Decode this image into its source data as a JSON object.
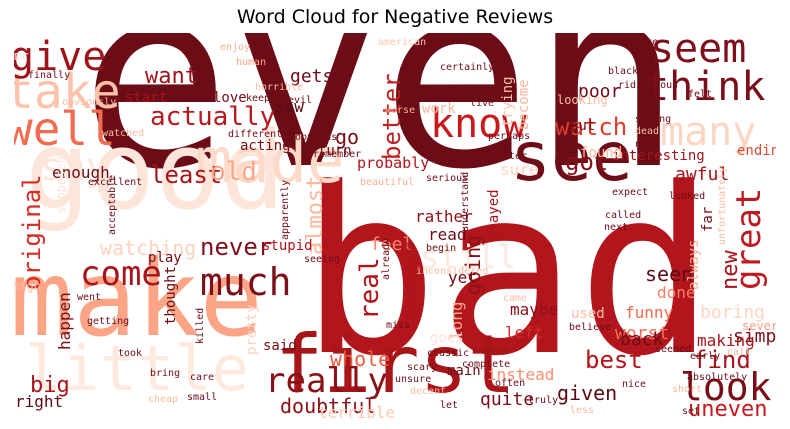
{
  "chart_data": {
    "type": "wordcloud",
    "title": "Word Cloud for Negative Reviews",
    "colormap": "Reds",
    "words": [
      {
        "text": "even",
        "weight": 1.0,
        "color": "#6b0c16"
      },
      {
        "text": "bad",
        "weight": 0.98,
        "color": "#b3151c"
      },
      {
        "text": "good",
        "weight": 0.62,
        "color": "#fde5d9"
      },
      {
        "text": "make",
        "weight": 0.62,
        "color": "#fca486"
      },
      {
        "text": "first",
        "weight": 0.45,
        "color": "#a81519"
      },
      {
        "text": "made",
        "weight": 0.38,
        "color": "#fdd9c8"
      },
      {
        "text": "little",
        "weight": 0.37,
        "color": "#fee9df"
      },
      {
        "text": "see",
        "weight": 0.33,
        "color": "#6e0c17"
      },
      {
        "text": "take",
        "weight": 0.26,
        "color": "#fcc2aa"
      },
      {
        "text": "well",
        "weight": 0.25,
        "color": "#f26b4f"
      },
      {
        "text": "seem",
        "weight": 0.22,
        "color": "#7f0f1a"
      },
      {
        "text": "think",
        "weight": 0.22,
        "color": "#7b0e18"
      },
      {
        "text": "give",
        "weight": 0.2,
        "color": "#9d1318"
      },
      {
        "text": "know",
        "weight": 0.2,
        "color": "#cb181d"
      },
      {
        "text": "many",
        "weight": 0.2,
        "color": "#fcd5c4"
      },
      {
        "text": "say",
        "weight": 0.19,
        "color": "#fee5da"
      },
      {
        "text": "much",
        "weight": 0.19,
        "color": "#7d0f18"
      },
      {
        "text": "look",
        "weight": 0.19,
        "color": "#7a0e18"
      },
      {
        "text": "really",
        "weight": 0.18,
        "color": "#8c1116"
      },
      {
        "text": "great",
        "weight": 0.17,
        "color": "#be1a21"
      },
      {
        "text": "come",
        "weight": 0.17,
        "color": "#a8141b"
      },
      {
        "text": "still",
        "weight": 0.16,
        "color": "#fee9df"
      },
      {
        "text": "actually",
        "weight": 0.14,
        "color": "#b61a1e"
      },
      {
        "text": "watch",
        "weight": 0.14,
        "color": "#e03a2b"
      },
      {
        "text": "got",
        "weight": 0.14,
        "color": "#871018"
      },
      {
        "text": "better",
        "weight": 0.13,
        "color": "#c0201f"
      },
      {
        "text": "original",
        "weight": 0.13,
        "color": "#d52b23"
      },
      {
        "text": "least",
        "weight": 0.13,
        "color": "#a8141b"
      },
      {
        "text": "old",
        "weight": 0.13,
        "color": "#fca588"
      },
      {
        "text": "never",
        "weight": 0.13,
        "color": "#7f0f1a"
      },
      {
        "text": "want",
        "weight": 0.12,
        "color": "#9d1318"
      },
      {
        "text": "watching",
        "weight": 0.12,
        "color": "#fdd3c0"
      },
      {
        "text": "real",
        "weight": 0.12,
        "color": "#b21218"
      },
      {
        "text": "new",
        "weight": 0.12,
        "color": "#a8141b"
      },
      {
        "text": "uneven",
        "weight": 0.12,
        "color": "#c8171c"
      },
      {
        "text": "find",
        "weight": 0.12,
        "color": "#a8141b"
      },
      {
        "text": "almost",
        "weight": 0.11,
        "color": "#fcb79c"
      },
      {
        "text": "going",
        "weight": 0.11,
        "color": "#8c1116"
      },
      {
        "text": "seen",
        "weight": 0.1,
        "color": "#5c0a14"
      },
      {
        "text": "big",
        "weight": 0.1,
        "color": "#a8141b"
      },
      {
        "text": "best",
        "weight": 0.1,
        "color": "#b31319"
      },
      {
        "text": "doubtful",
        "weight": 0.1,
        "color": "#8c1116"
      },
      {
        "text": "whole",
        "weight": 0.1,
        "color": "#ec5a3f"
      },
      {
        "text": "terrible",
        "weight": 0.09,
        "color": "#fdcab5"
      },
      {
        "text": "go",
        "weight": 0.1,
        "color": "#7a0e18"
      },
      {
        "text": "gets",
        "weight": 0.09,
        "color": "#6e0c17"
      },
      {
        "text": "enough",
        "weight": 0.08,
        "color": "#6e0c17"
      },
      {
        "text": "acting",
        "weight": 0.08,
        "color": "#7a0e18"
      },
      {
        "text": "awful",
        "weight": 0.08,
        "color": "#a8141b"
      },
      {
        "text": "interesting",
        "weight": 0.08,
        "color": "#a3141a"
      },
      {
        "text": "ending",
        "weight": 0.07,
        "color": "#e24a33"
      },
      {
        "text": "found",
        "weight": 0.08,
        "color": "#fcb79c"
      },
      {
        "text": "probably",
        "weight": 0.08,
        "color": "#b31319"
      },
      {
        "text": "sure",
        "weight": 0.08,
        "color": "#fdd5c3"
      },
      {
        "text": "rather",
        "weight": 0.07,
        "color": "#8c1116"
      },
      {
        "text": "read",
        "weight": 0.07,
        "color": "#6e0c17"
      },
      {
        "text": "feel",
        "weight": 0.08,
        "color": "#f7876b"
      },
      {
        "text": "stupid",
        "weight": 0.07,
        "color": "#b21218"
      },
      {
        "text": "play",
        "weight": 0.07,
        "color": "#7a0e18"
      },
      {
        "text": "done",
        "weight": 0.07,
        "color": "#fb7f62"
      },
      {
        "text": "funny",
        "weight": 0.07,
        "color": "#ee6a4d"
      },
      {
        "text": "worst",
        "weight": 0.07,
        "color": "#f27155"
      },
      {
        "text": "boring",
        "weight": 0.07,
        "color": "#fdd5c3"
      },
      {
        "text": "simply",
        "weight": 0.07,
        "color": "#7f0f1a"
      },
      {
        "text": "making",
        "weight": 0.07,
        "color": "#a8141b"
      },
      {
        "text": "back",
        "weight": 0.07,
        "color": "#6e0c17"
      },
      {
        "text": "left",
        "weight": 0.07,
        "color": "#d42c25"
      },
      {
        "text": "maybe",
        "weight": 0.06,
        "color": "#8c1116"
      },
      {
        "text": "long",
        "weight": 0.07,
        "color": "#fcaa8e"
      },
      {
        "text": "yet",
        "weight": 0.06,
        "color": "#6e0c17"
      },
      {
        "text": "pretty",
        "weight": 0.07,
        "color": "#fdd3c0"
      },
      {
        "text": "thought",
        "weight": 0.06,
        "color": "#6e0c17"
      },
      {
        "text": "happen",
        "weight": 0.07,
        "color": "#7a0e18"
      },
      {
        "text": "right",
        "weight": 0.06,
        "color": "#5c0a14"
      },
      {
        "text": "said",
        "weight": 0.06,
        "color": "#7a0e18"
      },
      {
        "text": "instead",
        "weight": 0.06,
        "color": "#fb8d70"
      },
      {
        "text": "quite",
        "weight": 0.06,
        "color": "#7a0e18"
      },
      {
        "text": "given",
        "weight": 0.06,
        "color": "#5c0a14"
      },
      {
        "text": "used",
        "weight": 0.06,
        "color": "#fcbda4"
      },
      {
        "text": "main",
        "weight": 0.06,
        "color": "#6e0c17"
      },
      {
        "text": "goes",
        "weight": 0.06,
        "color": "#fee3d7"
      },
      {
        "text": "poor",
        "weight": 0.07,
        "color": "#6e0c17"
      },
      {
        "text": "put",
        "weight": 0.06,
        "color": "#7a0e18"
      },
      {
        "text": "work",
        "weight": 0.05,
        "color": "#fcbba1"
      },
      {
        "text": "saw",
        "weight": 0.06,
        "color": "#5c0a14"
      },
      {
        "text": "love",
        "weight": 0.05,
        "color": "#7a0e18"
      },
      {
        "text": "start",
        "weight": 0.05,
        "color": "#a8141b"
      },
      {
        "text": "trying",
        "weight": 0.05,
        "color": "#fcc1a8"
      },
      {
        "text": "become",
        "weight": 0.05,
        "color": "#fcb59a"
      },
      {
        "text": "played",
        "weight": 0.05,
        "color": "#a8141b"
      },
      {
        "text": "always",
        "weight": 0.05,
        "color": "#fcae92"
      },
      {
        "text": "far",
        "weight": 0.05,
        "color": "#7a0e18"
      },
      {
        "text": "turn",
        "weight": 0.05,
        "color": "#6e0c17"
      },
      {
        "text": "supposed",
        "weight": 0.05,
        "color": "#fee5da"
      },
      {
        "text": "several",
        "weight": 0.04,
        "color": "#fca082"
      },
      {
        "text": "mr",
        "weight": 0.04,
        "color": "#fee9df"
      },
      {
        "text": "american",
        "weight": 0.03,
        "color": "#fcc5ae"
      },
      {
        "text": "missed",
        "weight": 0.03,
        "color": "#6e0c17"
      },
      {
        "text": "enjoy",
        "weight": 0.03,
        "color": "#fcae92"
      },
      {
        "text": "certainly",
        "weight": 0.03,
        "color": "#6e0c17"
      },
      {
        "text": "gave",
        "weight": 0.03,
        "color": "#6e0c17"
      },
      {
        "text": "black",
        "weight": 0.03,
        "color": "#6e0c17"
      },
      {
        "text": "ridiculous",
        "weight": 0.03,
        "color": "#6e0c17"
      },
      {
        "text": "felt",
        "weight": 0.03,
        "color": "#6e0c17"
      },
      {
        "text": "human",
        "weight": 0.03,
        "color": "#fca486"
      },
      {
        "text": "horrible",
        "weight": 0.03,
        "color": "#fcbba1"
      },
      {
        "text": "evil",
        "weight": 0.03,
        "color": "#6e0c17"
      },
      {
        "text": "keep",
        "weight": 0.03,
        "color": "#6e0c17"
      },
      {
        "text": "worse",
        "weight": 0.03,
        "color": "#fcae92"
      },
      {
        "text": "entire",
        "weight": 0.03,
        "color": "#6e0c17"
      },
      {
        "text": "live",
        "weight": 0.03,
        "color": "#6e0c17"
      },
      {
        "text": "saying",
        "weight": 0.03,
        "color": "#6e0c17"
      },
      {
        "text": "dead",
        "weight": 0.03,
        "color": "#fcc1a8"
      },
      {
        "text": "need",
        "weight": 0.03,
        "color": "#6e0c17"
      },
      {
        "text": "perhaps",
        "weight": 0.03,
        "color": "#6e0c17"
      },
      {
        "text": "later",
        "weight": 0.03,
        "color": "#6e0c17"
      },
      {
        "text": "different",
        "weight": 0.03,
        "color": "#6e0c17"
      },
      {
        "text": "obvious",
        "weight": 0.03,
        "color": "#6e0c17"
      },
      {
        "text": "remember",
        "weight": 0.03,
        "color": "#6e0c17"
      },
      {
        "text": "serious",
        "weight": 0.03,
        "color": "#6e0c17"
      },
      {
        "text": "excellent",
        "weight": 0.03,
        "color": "#6e0c17"
      },
      {
        "text": "beautiful",
        "weight": 0.03,
        "color": "#fcae92"
      },
      {
        "text": "expect",
        "weight": 0.03,
        "color": "#6e0c17"
      },
      {
        "text": "looked",
        "weight": 0.03,
        "color": "#6e0c17"
      },
      {
        "text": "called",
        "weight": 0.03,
        "color": "#6e0c17"
      },
      {
        "text": "next",
        "weight": 0.03,
        "color": "#6e0c17"
      },
      {
        "text": "understand",
        "weight": 0.03,
        "color": "#6e0c17"
      },
      {
        "text": "acceptable",
        "weight": 0.03,
        "color": "#6e0c17"
      },
      {
        "text": "apparently",
        "weight": 0.03,
        "color": "#6e0c17"
      },
      {
        "text": "unfortunately",
        "weight": 0.03,
        "color": "#fcbba1"
      },
      {
        "text": "begin",
        "weight": 0.03,
        "color": "#6e0c17"
      },
      {
        "text": "seeing",
        "weight": 0.03,
        "color": "#6e0c17"
      },
      {
        "text": "inconsidered",
        "weight": 0.03,
        "color": "#fcbba1"
      },
      {
        "text": "disappointing",
        "weight": 0.03,
        "color": "#a8141b"
      },
      {
        "text": "already",
        "weight": 0.03,
        "color": "#6e0c17"
      },
      {
        "text": "high",
        "weight": 0.03,
        "color": "#fcbba1"
      },
      {
        "text": "went",
        "weight": 0.03,
        "color": "#6e0c17"
      },
      {
        "text": "getting",
        "weight": 0.03,
        "color": "#6e0c17"
      },
      {
        "text": "killed",
        "weight": 0.03,
        "color": "#6e0c17"
      },
      {
        "text": "took",
        "weight": 0.03,
        "color": "#6e0c17"
      },
      {
        "text": "came",
        "weight": 0.03,
        "color": "#fcbba1"
      },
      {
        "text": "miss",
        "weight": 0.03,
        "color": "#6e0c17"
      },
      {
        "text": "classic",
        "weight": 0.03,
        "color": "#6e0c17"
      },
      {
        "text": "believe",
        "weight": 0.03,
        "color": "#6e0c17"
      },
      {
        "text": "seemed",
        "weight": 0.03,
        "color": "#6e0c17"
      },
      {
        "text": "scary",
        "weight": 0.03,
        "color": "#6e0c17"
      },
      {
        "text": "unsure",
        "weight": 0.03,
        "color": "#6e0c17"
      },
      {
        "text": "decent",
        "weight": 0.03,
        "color": "#fcbba1"
      },
      {
        "text": "complete",
        "weight": 0.03,
        "color": "#6e0c17"
      },
      {
        "text": "often",
        "weight": 0.03,
        "color": "#6e0c17"
      },
      {
        "text": "nice",
        "weight": 0.03,
        "color": "#6e0c17"
      },
      {
        "text": "early",
        "weight": 0.03,
        "color": "#6e0c17"
      },
      {
        "text": "call",
        "weight": 0.03,
        "color": "#fcbba1"
      },
      {
        "text": "absolutely",
        "weight": 0.03,
        "color": "#6e0c17"
      },
      {
        "text": "short",
        "weight": 0.03,
        "color": "#fcbba1"
      },
      {
        "text": "set",
        "weight": 0.03,
        "color": "#6e0c17"
      },
      {
        "text": "bring",
        "weight": 0.03,
        "color": "#6e0c17"
      },
      {
        "text": "care",
        "weight": 0.03,
        "color": "#6e0c17"
      },
      {
        "text": "cheap",
        "weight": 0.03,
        "color": "#fcbba1"
      },
      {
        "text": "small",
        "weight": 0.03,
        "color": "#6e0c17"
      },
      {
        "text": "let",
        "weight": 0.03,
        "color": "#6e0c17"
      },
      {
        "text": "truly",
        "weight": 0.03,
        "color": "#6e0c17"
      },
      {
        "text": "less",
        "weight": 0.03,
        "color": "#fcbba1"
      },
      {
        "text": "finally",
        "weight": 0.03,
        "color": "#6e0c17"
      },
      {
        "text": "obviously",
        "weight": 0.03,
        "color": "#fcbba1"
      },
      {
        "text": "watched",
        "weight": 0.03,
        "color": "#fcbba1"
      },
      {
        "text": "looking",
        "weight": 0.03,
        "color": "#fcbba1"
      }
    ]
  }
}
